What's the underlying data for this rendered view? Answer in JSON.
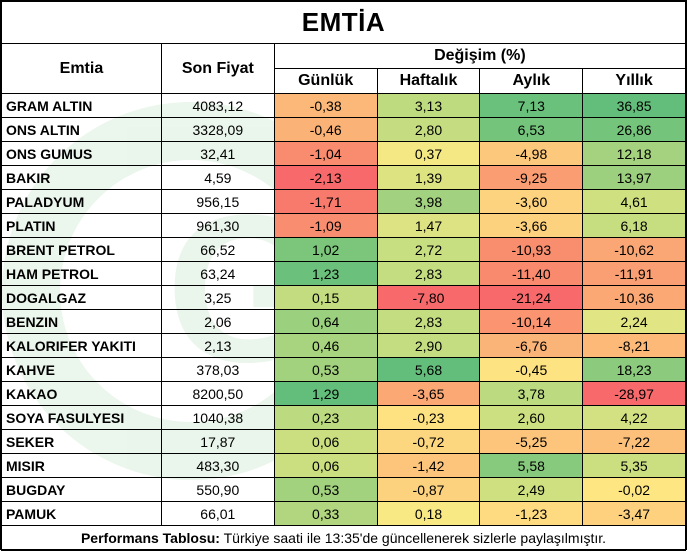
{
  "title": "EMTİA",
  "headers": {
    "commodity": "Emtia",
    "last_price": "Son Fiyat",
    "change_group": "Değişim (%)",
    "daily": "Günlük",
    "weekly": "Haftalık",
    "monthly": "Aylık",
    "yearly": "Yıllık"
  },
  "rows": [
    {
      "name": "GRAM ALTIN",
      "price": "4083,12",
      "daily": "-0,38",
      "weekly": "3,13",
      "monthly": "7,13",
      "yearly": "36,85",
      "colors": [
        "#fbb878",
        "#bfdb7f",
        "#6ac17b",
        "#63be7b"
      ]
    },
    {
      "name": "ONS ALTIN",
      "price": "3328,09",
      "daily": "-0,46",
      "weekly": "2,80",
      "monthly": "6,53",
      "yearly": "26,86",
      "colors": [
        "#fbb276",
        "#c5dd80",
        "#74c47c",
        "#75c47c"
      ]
    },
    {
      "name": "ONS GUMUS",
      "price": "32,41",
      "daily": "-1,04",
      "weekly": "0,37",
      "monthly": "-4,98",
      "yearly": "12,18",
      "colors": [
        "#f98b6e",
        "#f4e884",
        "#fcc87c",
        "#a4d27f"
      ]
    },
    {
      "name": "BAKIR",
      "price": "4,59",
      "daily": "-2,13",
      "weekly": "1,39",
      "monthly": "-9,25",
      "yearly": "13,97",
      "colors": [
        "#f8696b",
        "#dee382",
        "#fa9d72",
        "#9dd07e"
      ]
    },
    {
      "name": "PALADYUM",
      "price": "956,15",
      "daily": "-1,71",
      "weekly": "3,98",
      "monthly": "-3,60",
      "yearly": "4,61",
      "colors": [
        "#f87a6c",
        "#a2d17f",
        "#fdd37f",
        "#cfe081"
      ]
    },
    {
      "name": "PLATIN",
      "price": "961,30",
      "daily": "-1,09",
      "weekly": "1,47",
      "monthly": "-3,66",
      "yearly": "6,18",
      "colors": [
        "#f98d6f",
        "#dde382",
        "#fdd27f",
        "#c6dd80"
      ]
    },
    {
      "name": "BRENT PETROL",
      "price": "66,52",
      "daily": "1,02",
      "weekly": "2,72",
      "monthly": "-10,93",
      "yearly": "-10,62",
      "colors": [
        "#7cc67c",
        "#c7de81",
        "#f98e6f",
        "#fba775"
      ]
    },
    {
      "name": "HAM PETROL",
      "price": "63,24",
      "daily": "1,23",
      "weekly": "2,83",
      "monthly": "-11,40",
      "yearly": "-11,91",
      "colors": [
        "#6bc17b",
        "#c4dd80",
        "#f98a6e",
        "#fa9f73"
      ]
    },
    {
      "name": "DOGALGAZ",
      "price": "3,25",
      "daily": "0,15",
      "weekly": "-7,80",
      "monthly": "-21,24",
      "yearly": "-10,36",
      "colors": [
        "#c3dc80",
        "#f8696b",
        "#f8696b",
        "#fba875"
      ]
    },
    {
      "name": "BENZIN",
      "price": "2,06",
      "daily": "0,64",
      "weekly": "2,83",
      "monthly": "-10,14",
      "yearly": "2,24",
      "colors": [
        "#9ad07e",
        "#c4dd80",
        "#fa9471",
        "#e2e583"
      ]
    },
    {
      "name": "KALORIFER YAKITI",
      "price": "2,13",
      "daily": "0,46",
      "weekly": "2,90",
      "monthly": "-6,76",
      "yearly": "-8,21",
      "colors": [
        "#a9d47f",
        "#c3dd80",
        "#fbb477",
        "#fcb978"
      ]
    },
    {
      "name": "KAHVE",
      "price": "378,03",
      "daily": "0,53",
      "weekly": "5,68",
      "monthly": "-0,45",
      "yearly": "18,23",
      "colors": [
        "#a3d27f",
        "#63be7b",
        "#fee382",
        "#8ccb7d"
      ]
    },
    {
      "name": "KAKAO",
      "price": "8200,50",
      "daily": "1,29",
      "weekly": "-3,65",
      "monthly": "3,78",
      "yearly": "-28,97",
      "colors": [
        "#63be7b",
        "#fba875",
        "#bcda80",
        "#f8696b"
      ]
    },
    {
      "name": "SOYA FASULYESI",
      "price": "1040,38",
      "daily": "0,23",
      "weekly": "-0,23",
      "monthly": "2,60",
      "yearly": "4,22",
      "colors": [
        "#bcda80",
        "#fee282",
        "#cde081",
        "#d3e182"
      ]
    },
    {
      "name": "SEKER",
      "price": "17,87",
      "daily": "0,06",
      "weekly": "-0,72",
      "monthly": "-5,25",
      "yearly": "-7,22",
      "colors": [
        "#cbdf81",
        "#fdd680",
        "#fcc57b",
        "#fcc07a"
      ]
    },
    {
      "name": "MISIR",
      "price": "483,30",
      "daily": "0,06",
      "weekly": "-1,42",
      "monthly": "5,58",
      "yearly": "5,35",
      "colors": [
        "#cbdf81",
        "#fcc57b",
        "#88ca7d",
        "#cbdf81"
      ]
    },
    {
      "name": "BUGDAY",
      "price": "550,90",
      "daily": "0,53",
      "weekly": "-0,87",
      "monthly": "2,49",
      "yearly": "-0,02",
      "colors": [
        "#a3d27f",
        "#fdd27f",
        "#cfe081",
        "#fee783"
      ]
    },
    {
      "name": "PAMUK",
      "price": "66,01",
      "daily": "0,33",
      "weekly": "0,18",
      "monthly": "-1,23",
      "yearly": "-3,47",
      "colors": [
        "#b2d680",
        "#f8e984",
        "#fedb81",
        "#fdd17e"
      ]
    }
  ],
  "footer": {
    "label": "Performans Tablosu:",
    "text": " Türkiye saati ile 13:35'de güncellenerek sizlerle paylaşılmıştır."
  }
}
